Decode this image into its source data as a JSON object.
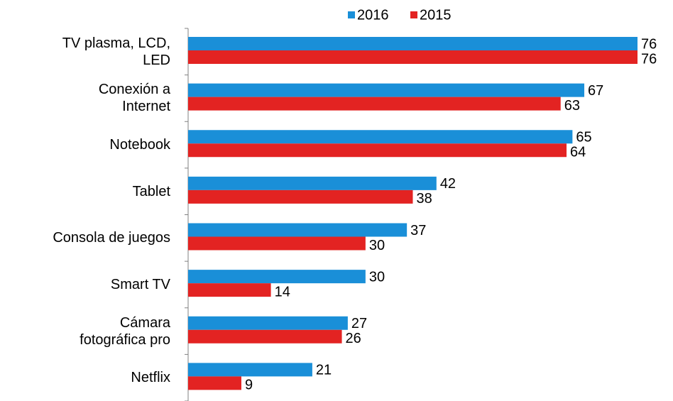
{
  "chart_data": {
    "type": "bar",
    "orientation": "horizontal",
    "categories": [
      "TV plasma, LCD,\nLED",
      "Conexión a\nInternet",
      "Notebook",
      "Tablet",
      "Consola de juegos",
      "Smart TV",
      "Cámara\nfotográfica pro",
      "Netflix"
    ],
    "series": [
      {
        "name": "2016",
        "color": "#1a8fd8",
        "values": [
          76,
          67,
          65,
          42,
          37,
          30,
          27,
          21
        ]
      },
      {
        "name": "2015",
        "color": "#e32322",
        "values": [
          76,
          63,
          64,
          38,
          30,
          14,
          26,
          9
        ]
      }
    ],
    "legend": "top"
  }
}
